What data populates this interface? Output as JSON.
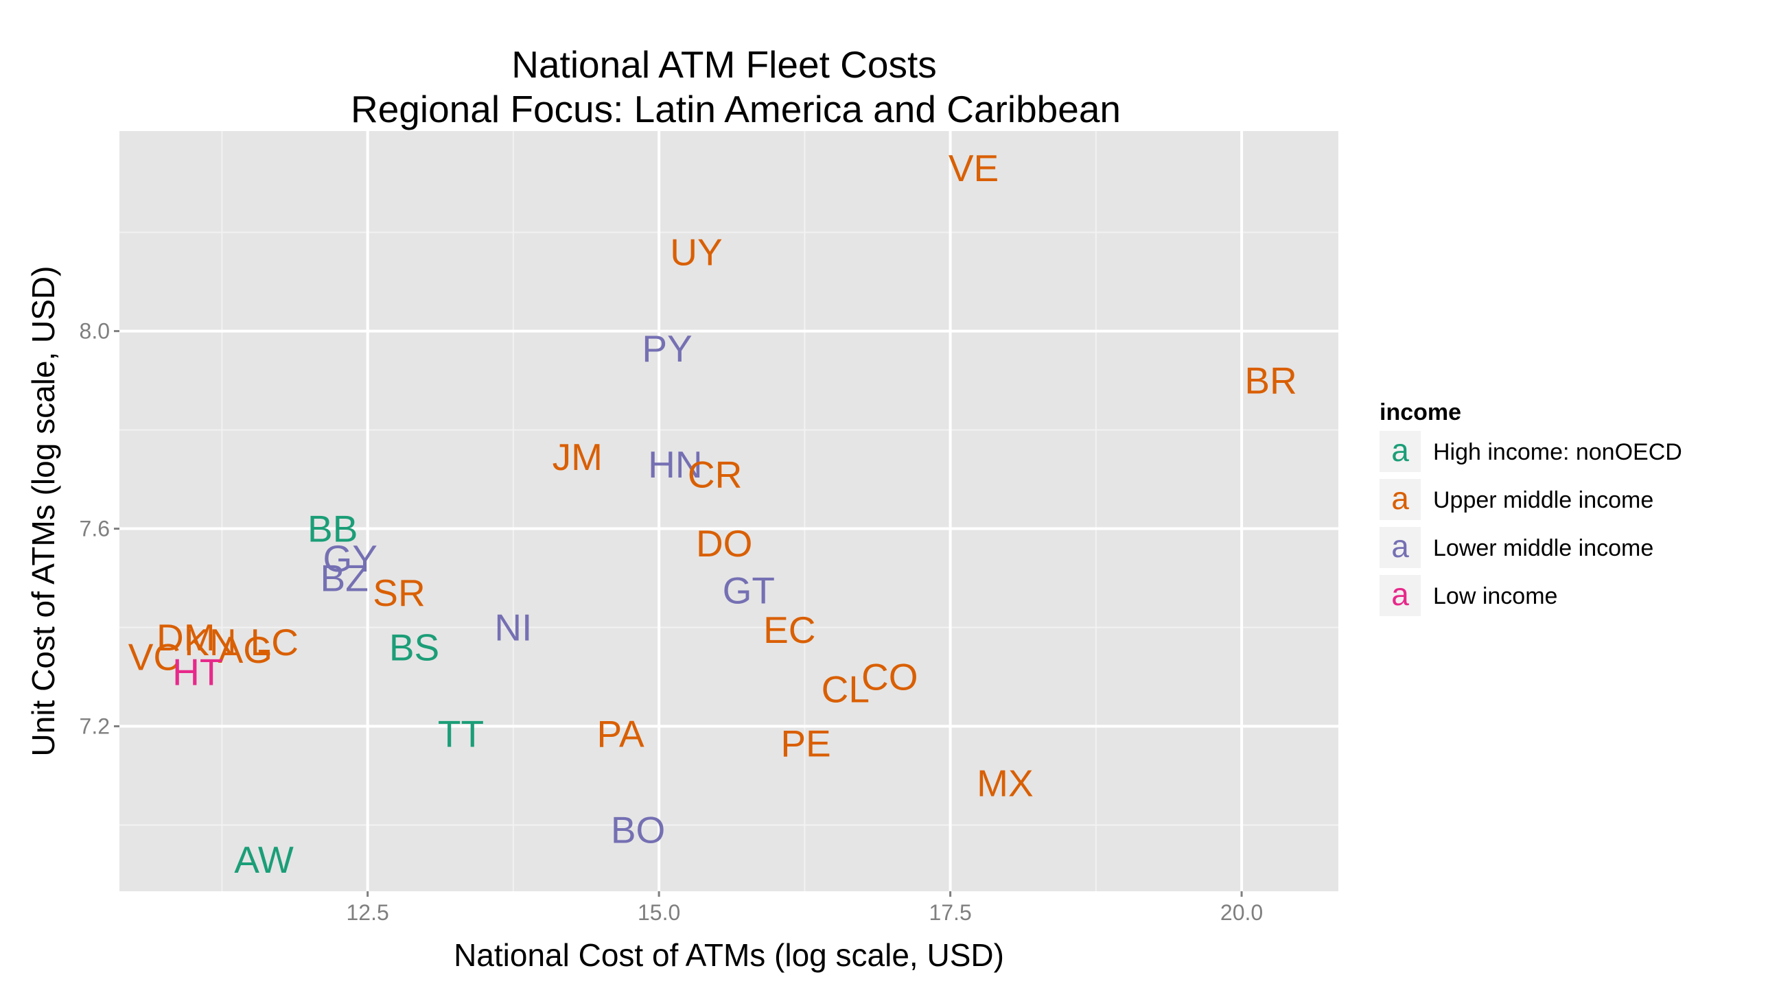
{
  "chart_data": {
    "type": "scatter",
    "title": "National ATM Fleet Costs",
    "subtitle": "Regional Focus: Latin America and Caribbean",
    "xlabel": "National Cost of ATMs (log scale, USD)",
    "ylabel": "Unit Cost of ATMs (log scale, USD)",
    "xlim": [
      10.37,
      20.83
    ],
    "ylim": [
      6.866,
      8.405
    ],
    "x_ticks": [
      12.5,
      15.0,
      17.5,
      20.0
    ],
    "x_tick_labels": [
      "12.5",
      "15.0",
      "17.5",
      "20.0"
    ],
    "y_ticks": [
      7.2,
      7.6,
      8.0
    ],
    "y_tick_labels": [
      "7.2",
      "7.6",
      "8.0"
    ],
    "grid": true,
    "legend": {
      "title": "income",
      "position": "right",
      "key_glyph": "a",
      "entries": [
        {
          "name": "High income: nonOECD",
          "color": "#1b9e77"
        },
        {
          "name": "Upper middle income",
          "color": "#d95f02"
        },
        {
          "name": "Lower middle income",
          "color": "#7570b3"
        },
        {
          "name": "Low income",
          "color": "#e7298a"
        }
      ]
    },
    "points": [
      {
        "label": "VE",
        "x": 17.7,
        "y": 8.33,
        "income": "Upper middle income"
      },
      {
        "label": "UY",
        "x": 15.32,
        "y": 8.16,
        "income": "Upper middle income"
      },
      {
        "label": "PY",
        "x": 15.07,
        "y": 7.965,
        "income": "Lower middle income"
      },
      {
        "label": "BR",
        "x": 20.25,
        "y": 7.9,
        "income": "Upper middle income"
      },
      {
        "label": "JM",
        "x": 14.3,
        "y": 7.745,
        "income": "Upper middle income"
      },
      {
        "label": "HN",
        "x": 15.14,
        "y": 7.73,
        "income": "Lower middle income"
      },
      {
        "label": "CR",
        "x": 15.48,
        "y": 7.71,
        "income": "Upper middle income"
      },
      {
        "label": "BB",
        "x": 12.2,
        "y": 7.6,
        "income": "High income: nonOECD"
      },
      {
        "label": "GY",
        "x": 12.35,
        "y": 7.54,
        "income": "Lower middle income"
      },
      {
        "label": "DO",
        "x": 15.56,
        "y": 7.57,
        "income": "Upper middle income"
      },
      {
        "label": "BZ",
        "x": 12.3,
        "y": 7.5,
        "income": "Lower middle income"
      },
      {
        "label": "SR",
        "x": 12.77,
        "y": 7.47,
        "income": "Upper middle income"
      },
      {
        "label": "GT",
        "x": 15.77,
        "y": 7.475,
        "income": "Lower middle income"
      },
      {
        "label": "NI",
        "x": 13.75,
        "y": 7.4,
        "income": "Lower middle income"
      },
      {
        "label": "EC",
        "x": 16.12,
        "y": 7.395,
        "income": "Upper middle income"
      },
      {
        "label": "DM",
        "x": 10.94,
        "y": 7.38,
        "income": "Upper middle income"
      },
      {
        "label": "KN",
        "x": 11.15,
        "y": 7.37,
        "income": "Upper middle income"
      },
      {
        "label": "LC",
        "x": 11.7,
        "y": 7.37,
        "income": "Upper middle income"
      },
      {
        "label": "BS",
        "x": 12.9,
        "y": 7.36,
        "income": "High income: nonOECD"
      },
      {
        "label": "AG",
        "x": 11.45,
        "y": 7.355,
        "income": "Upper middle income"
      },
      {
        "label": "VC",
        "x": 10.67,
        "y": 7.34,
        "income": "Upper middle income"
      },
      {
        "label": "HT",
        "x": 11.04,
        "y": 7.31,
        "income": "Low income"
      },
      {
        "label": "CO",
        "x": 16.98,
        "y": 7.3,
        "income": "Upper middle income"
      },
      {
        "label": "CL",
        "x": 16.6,
        "y": 7.275,
        "income": "Upper middle income"
      },
      {
        "label": "TT",
        "x": 13.3,
        "y": 7.185,
        "income": "High income: nonOECD"
      },
      {
        "label": "PA",
        "x": 14.67,
        "y": 7.185,
        "income": "Upper middle income"
      },
      {
        "label": "PE",
        "x": 16.26,
        "y": 7.165,
        "income": "Upper middle income"
      },
      {
        "label": "MX",
        "x": 17.97,
        "y": 7.085,
        "income": "Upper middle income"
      },
      {
        "label": "BO",
        "x": 14.82,
        "y": 6.99,
        "income": "Lower middle income"
      },
      {
        "label": "AW",
        "x": 11.61,
        "y": 6.93,
        "income": "High income: nonOECD"
      }
    ]
  }
}
